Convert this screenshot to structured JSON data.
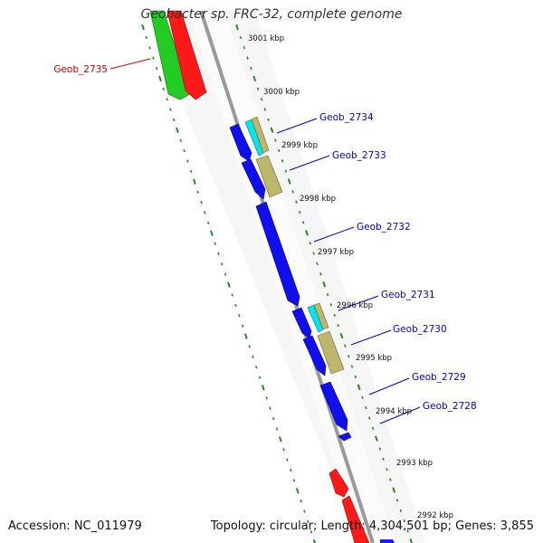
{
  "title": "Geobacter sp. FRC-32, complete genome",
  "footer": {
    "accession": "Accession: NC_011979",
    "topology": "Topology: circular; Length: 4,304,501 bp; Genes: 3,855"
  },
  "colors": {
    "forward_cds": "#ff0000",
    "reverse_cds": "#0000ff",
    "rna": "#00cc00",
    "cyan_feature": "#00e5ee",
    "khaki_feature": "#bdb76b",
    "backbone": "#999999",
    "tick": "#228b22",
    "forward_label": "#cc0000",
    "reverse_label": "#0000cc"
  },
  "ruler_ticks": [
    {
      "label": "3001 kbp"
    },
    {
      "label": "3000 kbp"
    },
    {
      "label": "2999 kbp"
    },
    {
      "label": "2998 kbp"
    },
    {
      "label": "2997 kbp"
    },
    {
      "label": "2996 kbp"
    },
    {
      "label": "2995 kbp"
    },
    {
      "label": "2994 kbp"
    },
    {
      "label": "2993 kbp"
    },
    {
      "label": "2992 kbp"
    }
  ],
  "gene_labels": [
    {
      "text": "Geob_2735",
      "strand": "forward"
    },
    {
      "text": "Geob_2734",
      "strand": "reverse"
    },
    {
      "text": "Geob_2733",
      "strand": "reverse"
    },
    {
      "text": "Geob_2732",
      "strand": "reverse"
    },
    {
      "text": "Geob_2731",
      "strand": "reverse"
    },
    {
      "text": "Geob_2730",
      "strand": "reverse"
    },
    {
      "text": "Geob_2729",
      "strand": "reverse"
    },
    {
      "text": "Geob_2728",
      "strand": "reverse"
    }
  ]
}
